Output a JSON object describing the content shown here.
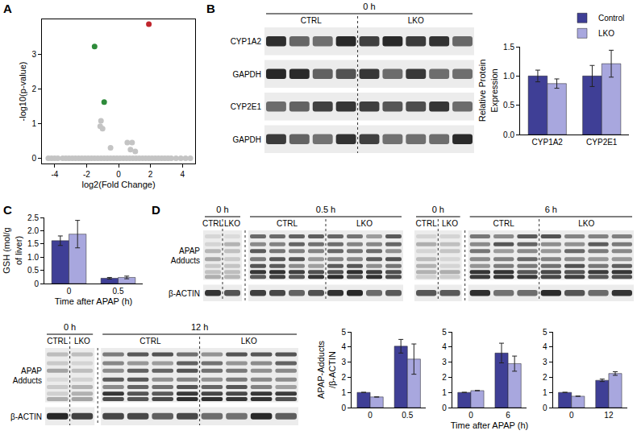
{
  "chart_data": [
    {
      "panel": "A",
      "type": "scatter",
      "x_label": "log2(Fold Change)",
      "y_label": "-log10(p-value)",
      "xlim": [
        -4.8,
        4.8
      ],
      "xticks": [
        -4,
        -2,
        0,
        2,
        4
      ],
      "ylim": [
        -0.15,
        4
      ],
      "yticks": [
        0,
        1,
        2,
        3
      ],
      "grid": false,
      "series": [
        {
          "color": "#c4c4c4",
          "x": [
            -4.4,
            -4.2,
            -4.0,
            -3.8,
            -3.5,
            -3.3,
            -3.1,
            -2.9,
            -2.7,
            -2.5,
            -2.3,
            -2.1,
            -1.9,
            -1.7,
            -1.5,
            -1.3,
            -1.1,
            -0.9,
            -0.7,
            -0.5,
            -0.3,
            -0.1,
            0.1,
            0.3,
            0.5,
            0.7,
            0.9,
            1.1,
            1.3,
            1.5,
            1.7,
            1.9,
            2.1,
            2.3,
            2.5,
            2.7,
            2.9,
            3.1,
            3.3,
            3.6,
            3.9,
            4.2,
            4.5,
            -1.1,
            -1.15,
            -1.0,
            0.55,
            0.85,
            0.75,
            1.05,
            -0.5
          ],
          "values": [
            0,
            0,
            0,
            0,
            0,
            0,
            0,
            0,
            0,
            0,
            0,
            0,
            0,
            0,
            0,
            0,
            0,
            0,
            0,
            0,
            0,
            0,
            0,
            0,
            0,
            0,
            0,
            0,
            0,
            0,
            0,
            0,
            0,
            0,
            0,
            0,
            0,
            0,
            0,
            0,
            0,
            0,
            0,
            1.08,
            0.92,
            0.85,
            0.45,
            0.45,
            0.25,
            0.2,
            0.3
          ]
        },
        {
          "color": "#2e8b3a",
          "x": [
            -1.5,
            -0.9
          ],
          "values": [
            3.22,
            1.62
          ]
        },
        {
          "color": "#c0262d",
          "x": [
            1.9
          ],
          "values": [
            3.86
          ]
        }
      ]
    },
    {
      "type": "bar",
      "categories": [
        "CYP1A2",
        "CYP2E1"
      ],
      "y_label": "Relative Protein Expression",
      "ylim": [
        0,
        1.5
      ],
      "yticks": [
        {
          "value": 0,
          "label": "0.0"
        },
        0.5,
        {
          "value": 1,
          "label": "1.0"
        },
        1.5
      ],
      "grid": false,
      "legend": "top right",
      "series": [
        {
          "name": "Control",
          "color": "#3f3f96",
          "values": [
            1.0,
            1.0
          ],
          "errors": [
            0.1,
            0.18
          ]
        },
        {
          "name": "LKO",
          "color": "#a8a7de",
          "values": [
            0.87,
            1.21
          ],
          "errors": [
            0.08,
            0.23
          ]
        }
      ]
    },
    {
      "panel": "C",
      "type": "bar",
      "categories": [
        "0",
        "0.5"
      ],
      "x_label": "Time after APAP (h)",
      "y_label": "GSH (mol/g of liver)",
      "ylim": [
        0,
        2.5
      ],
      "yticks": [
        0,
        0.5,
        {
          "value": 1,
          "label": "1.0"
        },
        1.5,
        {
          "value": 2,
          "label": "2.0"
        },
        2.5
      ],
      "grid": false,
      "series": [
        {
          "color": "#3f3f96",
          "values": [
            1.62,
            0.2
          ],
          "errors": [
            0.18,
            0.03
          ]
        },
        {
          "color": "#a8a7de",
          "values": [
            1.87,
            0.23
          ],
          "errors": [
            0.52,
            0.05
          ]
        }
      ]
    },
    {
      "type": "bar",
      "categories": [
        "0",
        "0.5"
      ],
      "y_label": "APAP-Adducts /β-ACTIN",
      "ylim": [
        0,
        5
      ],
      "yticks": [
        0,
        1,
        2,
        3,
        4,
        5
      ],
      "grid": false,
      "series": [
        {
          "color": "#3f3f96",
          "values": [
            1,
            4.05
          ],
          "errors": [
            0,
            0.45
          ]
        },
        {
          "color": "#a8a7de",
          "values": [
            0.7,
            3.2
          ],
          "errors": [
            0,
            1.0
          ]
        }
      ]
    },
    {
      "type": "bar",
      "categories": [
        "0",
        "6"
      ],
      "x_label": "Time after APAP (h)",
      "ylim": [
        0,
        5
      ],
      "yticks": [
        0,
        1,
        2,
        3,
        4,
        5
      ],
      "grid": false,
      "series": [
        {
          "color": "#3f3f96",
          "values": [
            1,
            3.6
          ],
          "errors": [
            0,
            0.65
          ]
        },
        {
          "color": "#a8a7de",
          "values": [
            1.12,
            2.9
          ],
          "errors": [
            0,
            0.5
          ]
        }
      ]
    },
    {
      "type": "bar",
      "categories": [
        "0",
        "12"
      ],
      "ylim": [
        0,
        5
      ],
      "yticks": [
        0,
        1,
        2,
        3,
        4,
        5
      ],
      "grid": false,
      "series": [
        {
          "color": "#3f3f96",
          "values": [
            1,
            1.8
          ],
          "errors": [
            0,
            0.08
          ]
        },
        {
          "color": "#a8a7de",
          "values": [
            0.75,
            2.25
          ],
          "errors": [
            0,
            0.12
          ]
        }
      ]
    }
  ],
  "blots": [
    {
      "panel": "B",
      "rows": [
        "CYP1A2",
        "GAPDH",
        "CYP2E1",
        "GAPDH"
      ],
      "segments": [
        {
          "header": "0 h",
          "groups": [
            {
              "label": "CTRL",
              "lanes": 4
            },
            {
              "label": "LKO",
              "lanes": 5
            }
          ]
        }
      ]
    },
    {
      "panel": "D",
      "rows": [
        "APAP Adducts",
        "β-ACTIN"
      ],
      "segments": [
        {
          "header": "0 h",
          "groups": [
            {
              "label": "CTRL",
              "lanes": 1
            },
            {
              "label": "LKO",
              "lanes": 1
            }
          ]
        },
        {
          "header": "0.5 h",
          "groups": [
            {
              "label": "CTRL",
              "lanes": 4
            },
            {
              "label": "LKO",
              "lanes": 4
            }
          ]
        }
      ]
    },
    {
      "rows": [
        null,
        null
      ],
      "segments": [
        {
          "header": "0 h",
          "groups": [
            {
              "label": "CTRL",
              "lanes": 1
            },
            {
              "label": "LKO",
              "lanes": 1
            }
          ]
        },
        {
          "header": "6 h",
          "groups": [
            {
              "label": "CTRL",
              "lanes": 3
            },
            {
              "label": "LKO",
              "lanes": 4
            }
          ]
        }
      ]
    },
    {
      "rows": [
        "APAP Adducts",
        "β-ACTIN"
      ],
      "segments": [
        {
          "header": "0 h",
          "groups": [
            {
              "label": "CTRL",
              "lanes": 1
            },
            {
              "label": "LKO",
              "lanes": 1
            }
          ]
        },
        {
          "header": "12 h",
          "groups": [
            {
              "label": "CTRL",
              "lanes": 4
            },
            {
              "label": "LKO",
              "lanes": 4
            }
          ]
        }
      ]
    }
  ]
}
